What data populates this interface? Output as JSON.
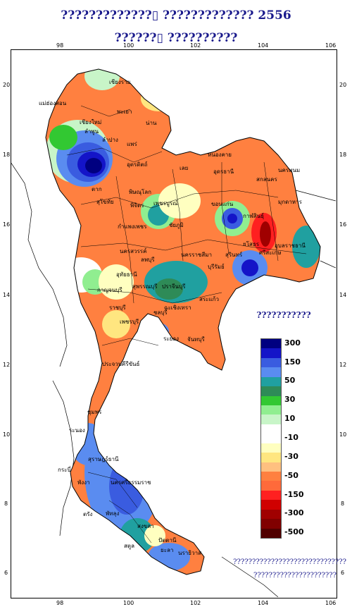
{
  "title_line1": "?????????????▯    ?????????????  2556",
  "title_line2": "??????▯    ??????????",
  "legend": {
    "title": "???????????",
    "items": [
      {
        "label": "300",
        "color": "#000080"
      },
      {
        "label": "",
        "color": "#1414c8"
      },
      {
        "label": "150",
        "color": "#3a5ce0"
      },
      {
        "label": "",
        "color": "#5a8cf0"
      },
      {
        "label": "50",
        "color": "#20a0a0"
      },
      {
        "label": "",
        "color": "#2e8b57"
      },
      {
        "label": "30",
        "color": "#32c832"
      },
      {
        "label": "",
        "color": "#90ee90"
      },
      {
        "label": "10",
        "color": "#c8f5c8"
      },
      {
        "label": "",
        "color": "#ffffff"
      },
      {
        "label": "-10",
        "color": "#ffffff"
      },
      {
        "label": "",
        "color": "#ffffc0"
      },
      {
        "label": "-30",
        "color": "#ffe680"
      },
      {
        "label": "",
        "color": "#ffc080"
      },
      {
        "label": "-50",
        "color": "#ff8040"
      },
      {
        "label": "",
        "color": "#ff6a3a"
      },
      {
        "label": "-150",
        "color": "#ff2020"
      },
      {
        "label": "",
        "color": "#d00000"
      },
      {
        "label": "-300",
        "color": "#a00000"
      },
      {
        "label": "",
        "color": "#800000"
      },
      {
        "label": "-500",
        "color": "#500000"
      }
    ]
  },
  "axes": {
    "x_ticks": [
      "98",
      "100",
      "102",
      "104",
      "106"
    ],
    "y_ticks": [
      "20",
      "18",
      "16",
      "14",
      "12",
      "10",
      "8",
      "6"
    ]
  },
  "note_line1": "??????????????????????????????",
  "note_line2": "??????????????????????",
  "provinces": [
    "เชียงราย",
    "แม่ฮ่องสอน",
    "เชียงใหม่",
    "ลำพูน",
    "ลำปาง",
    "พะเยา",
    "น่าน",
    "แพร่",
    "ตาก",
    "อุตรดิตถ์",
    "สุโขทัย",
    "พิษณุโลก",
    "กำแพงเพชร",
    "พิจิตร",
    "เพชรบูรณ์",
    "หนองคาย",
    "อุดรธานี",
    "เลย",
    "สกลนคร",
    "นครพนม",
    "มุกดาหาร",
    "ขอนแก่น",
    "กาฬสินธุ์",
    "ชัยภูมิ",
    "นครสวรรค์",
    "อุทัยธานี",
    "ลพบุรี",
    "ยโสธร",
    "อุบลราชธานี",
    "นครราชสีมา",
    "บุรีรัมย์",
    "สุรินทร์",
    "ศรีสะเกษ",
    "กาญจนบุรี",
    "สุพรรณบุรี",
    "ราชบุรี",
    "ปราจีนบุรี",
    "สระแก้ว",
    "ฉะเชิงเทรา",
    "ชลบุรี",
    "ระยอง",
    "จันทบุรี",
    "เพชรบุรี",
    "ประจวบคีรีขันธ์",
    "ชุมพร",
    "ระนอง",
    "สุราษฎร์ธานี",
    "กระบี่",
    "พังงา",
    "นครศรีธรรมราช",
    "ตรัง",
    "พัทลุง",
    "สงขลา",
    "สตูล",
    "ปัตตานี",
    "ยะลา",
    "นราธิวาส"
  ]
}
